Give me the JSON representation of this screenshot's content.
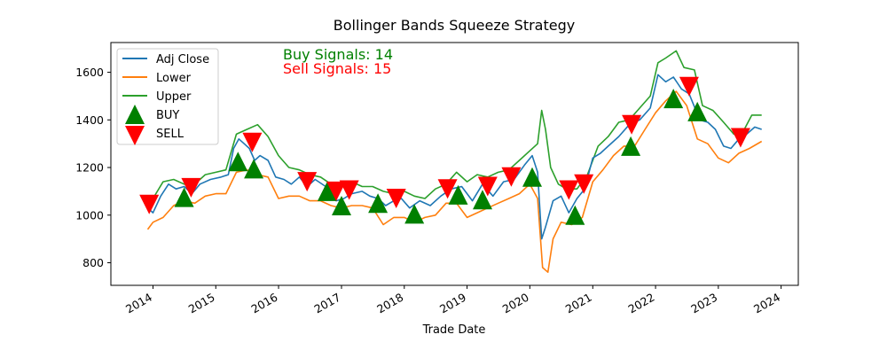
{
  "chart_data": {
    "type": "line",
    "title": "Bollinger Bands Squeeze Strategy",
    "xlabel": "Trade Date",
    "ylabel": "",
    "xlim": [
      "2013-05-01",
      "2024-04-10"
    ],
    "ylim": [
      705,
      1725
    ],
    "x_ticks": [
      "2014-01-01",
      "2015-01-01",
      "2016-01-01",
      "2017-01-01",
      "2018-01-01",
      "2019-01-01",
      "2020-01-01",
      "2021-01-01",
      "2022-01-01",
      "2023-01-01",
      "2024-01-01"
    ],
    "x_tick_labels": [
      "2014",
      "2015",
      "2016",
      "2017",
      "2018",
      "2019",
      "2020",
      "2021",
      "2022",
      "2023",
      "2024"
    ],
    "y_ticks": [
      800,
      1000,
      1200,
      1400,
      1600
    ],
    "y_tick_labels": [
      "800",
      "1000",
      "1200",
      "1400",
      "1600"
    ],
    "grid": false,
    "legend_position": "top-left",
    "legend": [
      "Adj Close",
      "Lower",
      "Upper",
      "BUY",
      "SELL"
    ],
    "annotations": [
      {
        "text": "Buy Signals: 14",
        "color": "#008000"
      },
      {
        "text": "Sell Signals: 15",
        "color": "#ff0000"
      }
    ],
    "colors": {
      "adj_close": "#1f77b4",
      "lower": "#ff7f0e",
      "upper": "#2ca02c",
      "buy": "#008000",
      "sell": "#ff0000"
    },
    "series": [
      {
        "name": "Adj Close",
        "points": [
          [
            "2013-12-01",
            1030
          ],
          [
            "2014-01-01",
            1010
          ],
          [
            "2014-02-15",
            1080
          ],
          [
            "2014-04-01",
            1130
          ],
          [
            "2014-05-15",
            1110
          ],
          [
            "2014-07-01",
            1120
          ],
          [
            "2014-08-15",
            1090
          ],
          [
            "2014-10-01",
            1130
          ],
          [
            "2014-12-01",
            1150
          ],
          [
            "2015-02-01",
            1160
          ],
          [
            "2015-03-15",
            1170
          ],
          [
            "2015-04-15",
            1280
          ],
          [
            "2015-05-15",
            1320
          ],
          [
            "2015-06-15",
            1300
          ],
          [
            "2015-07-15",
            1280
          ],
          [
            "2015-08-15",
            1230
          ],
          [
            "2015-09-15",
            1250
          ],
          [
            "2015-11-01",
            1230
          ],
          [
            "2015-12-15",
            1160
          ],
          [
            "2016-02-01",
            1150
          ],
          [
            "2016-03-15",
            1130
          ],
          [
            "2016-05-01",
            1160
          ],
          [
            "2016-06-15",
            1120
          ],
          [
            "2016-08-01",
            1150
          ],
          [
            "2016-10-01",
            1120
          ],
          [
            "2016-12-01",
            1060
          ],
          [
            "2017-01-15",
            1070
          ],
          [
            "2017-03-01",
            1090
          ],
          [
            "2017-05-01",
            1100
          ],
          [
            "2017-06-15",
            1080
          ],
          [
            "2017-08-01",
            1070
          ],
          [
            "2017-09-15",
            1040
          ],
          [
            "2017-11-01",
            1060
          ],
          [
            "2017-12-15",
            1070
          ],
          [
            "2018-02-01",
            1030
          ],
          [
            "2018-04-01",
            1060
          ],
          [
            "2018-06-01",
            1040
          ],
          [
            "2018-08-01",
            1080
          ],
          [
            "2018-10-01",
            1110
          ],
          [
            "2018-12-01",
            1120
          ],
          [
            "2019-02-01",
            1060
          ],
          [
            "2019-04-01",
            1130
          ],
          [
            "2019-06-01",
            1080
          ],
          [
            "2019-08-01",
            1140
          ],
          [
            "2019-10-01",
            1150
          ],
          [
            "2019-12-01",
            1210
          ],
          [
            "2020-01-15",
            1250
          ],
          [
            "2020-02-15",
            1180
          ],
          [
            "2020-03-10",
            900
          ],
          [
            "2020-04-01",
            950
          ],
          [
            "2020-05-15",
            1060
          ],
          [
            "2020-07-01",
            1080
          ],
          [
            "2020-08-15",
            1010
          ],
          [
            "2020-10-01",
            1070
          ],
          [
            "2020-11-15",
            1110
          ],
          [
            "2021-01-01",
            1240
          ],
          [
            "2021-02-15",
            1260
          ],
          [
            "2021-04-01",
            1290
          ],
          [
            "2021-06-01",
            1330
          ],
          [
            "2021-08-01",
            1380
          ],
          [
            "2021-10-01",
            1400
          ],
          [
            "2021-12-01",
            1450
          ],
          [
            "2022-01-15",
            1590
          ],
          [
            "2022-03-01",
            1560
          ],
          [
            "2022-04-15",
            1580
          ],
          [
            "2022-06-01",
            1530
          ],
          [
            "2022-07-15",
            1510
          ],
          [
            "2022-09-15",
            1400
          ],
          [
            "2022-11-01",
            1390
          ],
          [
            "2022-12-15",
            1360
          ],
          [
            "2023-02-01",
            1290
          ],
          [
            "2023-03-15",
            1280
          ],
          [
            "2023-05-01",
            1320
          ],
          [
            "2023-06-15",
            1340
          ],
          [
            "2023-08-01",
            1370
          ],
          [
            "2023-09-10",
            1360
          ]
        ]
      },
      {
        "name": "Lower",
        "points": [
          [
            "2013-12-01",
            940
          ],
          [
            "2014-01-01",
            970
          ],
          [
            "2014-03-01",
            990
          ],
          [
            "2014-05-01",
            1040
          ],
          [
            "2014-07-01",
            1060
          ],
          [
            "2014-09-01",
            1050
          ],
          [
            "2014-11-01",
            1080
          ],
          [
            "2015-01-01",
            1090
          ],
          [
            "2015-03-01",
            1090
          ],
          [
            "2015-05-01",
            1180
          ],
          [
            "2015-07-01",
            1190
          ],
          [
            "2015-09-01",
            1170
          ],
          [
            "2015-11-01",
            1160
          ],
          [
            "2016-01-01",
            1070
          ],
          [
            "2016-03-01",
            1080
          ],
          [
            "2016-05-01",
            1080
          ],
          [
            "2016-07-01",
            1060
          ],
          [
            "2016-09-01",
            1060
          ],
          [
            "2016-11-01",
            1040
          ],
          [
            "2017-01-01",
            1030
          ],
          [
            "2017-03-01",
            1040
          ],
          [
            "2017-05-01",
            1040
          ],
          [
            "2017-07-01",
            1030
          ],
          [
            "2017-09-01",
            960
          ],
          [
            "2017-11-01",
            990
          ],
          [
            "2018-01-01",
            990
          ],
          [
            "2018-03-01",
            970
          ],
          [
            "2018-05-01",
            990
          ],
          [
            "2018-07-01",
            1000
          ],
          [
            "2018-09-01",
            1050
          ],
          [
            "2018-11-01",
            1050
          ],
          [
            "2019-01-01",
            990
          ],
          [
            "2019-03-01",
            1010
          ],
          [
            "2019-05-01",
            1030
          ],
          [
            "2019-07-01",
            1050
          ],
          [
            "2019-09-01",
            1070
          ],
          [
            "2019-11-01",
            1090
          ],
          [
            "2020-01-01",
            1130
          ],
          [
            "2020-02-15",
            1070
          ],
          [
            "2020-03-15",
            780
          ],
          [
            "2020-04-15",
            760
          ],
          [
            "2020-05-15",
            900
          ],
          [
            "2020-07-01",
            970
          ],
          [
            "2020-09-01",
            960
          ],
          [
            "2020-11-01",
            990
          ],
          [
            "2021-01-01",
            1140
          ],
          [
            "2021-03-01",
            1190
          ],
          [
            "2021-05-01",
            1250
          ],
          [
            "2021-07-01",
            1290
          ],
          [
            "2021-09-01",
            1290
          ],
          [
            "2021-11-01",
            1360
          ],
          [
            "2022-01-01",
            1430
          ],
          [
            "2022-03-01",
            1480
          ],
          [
            "2022-05-01",
            1520
          ],
          [
            "2022-07-01",
            1460
          ],
          [
            "2022-09-01",
            1320
          ],
          [
            "2022-11-01",
            1300
          ],
          [
            "2023-01-01",
            1240
          ],
          [
            "2023-03-01",
            1220
          ],
          [
            "2023-05-01",
            1260
          ],
          [
            "2023-07-01",
            1280
          ],
          [
            "2023-09-10",
            1310
          ]
        ]
      },
      {
        "name": "Upper",
        "points": [
          [
            "2013-12-01",
            1050
          ],
          [
            "2014-01-01",
            1070
          ],
          [
            "2014-03-01",
            1140
          ],
          [
            "2014-05-01",
            1150
          ],
          [
            "2014-07-01",
            1130
          ],
          [
            "2014-09-01",
            1130
          ],
          [
            "2014-11-01",
            1170
          ],
          [
            "2015-01-01",
            1180
          ],
          [
            "2015-03-01",
            1190
          ],
          [
            "2015-05-01",
            1340
          ],
          [
            "2015-07-01",
            1360
          ],
          [
            "2015-09-01",
            1380
          ],
          [
            "2015-11-01",
            1330
          ],
          [
            "2016-01-01",
            1250
          ],
          [
            "2016-03-01",
            1200
          ],
          [
            "2016-05-01",
            1190
          ],
          [
            "2016-07-01",
            1170
          ],
          [
            "2016-09-01",
            1160
          ],
          [
            "2016-11-01",
            1130
          ],
          [
            "2017-01-01",
            1120
          ],
          [
            "2017-03-01",
            1140
          ],
          [
            "2017-05-01",
            1120
          ],
          [
            "2017-07-01",
            1120
          ],
          [
            "2017-09-01",
            1100
          ],
          [
            "2017-11-01",
            1090
          ],
          [
            "2018-01-01",
            1100
          ],
          [
            "2018-03-01",
            1080
          ],
          [
            "2018-05-01",
            1070
          ],
          [
            "2018-07-01",
            1110
          ],
          [
            "2018-09-01",
            1130
          ],
          [
            "2018-11-01",
            1180
          ],
          [
            "2019-01-01",
            1140
          ],
          [
            "2019-03-01",
            1170
          ],
          [
            "2019-05-01",
            1160
          ],
          [
            "2019-07-01",
            1180
          ],
          [
            "2019-09-01",
            1190
          ],
          [
            "2019-11-01",
            1230
          ],
          [
            "2020-01-01",
            1270
          ],
          [
            "2020-02-15",
            1300
          ],
          [
            "2020-03-10",
            1440
          ],
          [
            "2020-04-01",
            1360
          ],
          [
            "2020-05-01",
            1200
          ],
          [
            "2020-06-15",
            1130
          ],
          [
            "2020-08-01",
            1110
          ],
          [
            "2020-10-01",
            1110
          ],
          [
            "2020-12-01",
            1170
          ],
          [
            "2021-02-01",
            1290
          ],
          [
            "2021-04-01",
            1330
          ],
          [
            "2021-06-01",
            1390
          ],
          [
            "2021-08-01",
            1400
          ],
          [
            "2021-10-01",
            1450
          ],
          [
            "2021-12-01",
            1500
          ],
          [
            "2022-01-15",
            1640
          ],
          [
            "2022-03-01",
            1660
          ],
          [
            "2022-05-01",
            1690
          ],
          [
            "2022-06-15",
            1620
          ],
          [
            "2022-08-15",
            1610
          ],
          [
            "2022-10-01",
            1460
          ],
          [
            "2022-12-01",
            1440
          ],
          [
            "2023-02-01",
            1390
          ],
          [
            "2023-04-01",
            1340
          ],
          [
            "2023-06-01",
            1360
          ],
          [
            "2023-07-15",
            1420
          ],
          [
            "2023-09-10",
            1420
          ]
        ]
      }
    ],
    "buy_signals": [
      [
        "2014-07-01",
        1075
      ],
      [
        "2015-05-10",
        1225
      ],
      [
        "2015-08-10",
        1195
      ],
      [
        "2016-10-10",
        1100
      ],
      [
        "2017-01-01",
        1040
      ],
      [
        "2017-08-01",
        1050
      ],
      [
        "2018-03-01",
        1005
      ],
      [
        "2018-11-10",
        1085
      ],
      [
        "2019-04-01",
        1065
      ],
      [
        "2020-01-15",
        1160
      ],
      [
        "2020-09-20",
        1000
      ],
      [
        "2021-08-10",
        1290
      ],
      [
        "2022-04-15",
        1490
      ],
      [
        "2022-09-01",
        1435
      ]
    ],
    "sell_signals": [
      [
        "2013-12-10",
        1045
      ],
      [
        "2014-08-10",
        1115
      ],
      [
        "2015-08-01",
        1305
      ],
      [
        "2016-06-15",
        1140
      ],
      [
        "2016-12-01",
        1100
      ],
      [
        "2017-02-15",
        1105
      ],
      [
        "2017-11-15",
        1070
      ],
      [
        "2018-09-10",
        1110
      ],
      [
        "2019-05-01",
        1120
      ],
      [
        "2019-09-15",
        1160
      ],
      [
        "2020-08-15",
        1105
      ],
      [
        "2020-11-10",
        1130
      ],
      [
        "2021-08-15",
        1380
      ],
      [
        "2022-07-15",
        1540
      ],
      [
        "2023-05-10",
        1325
      ]
    ]
  }
}
